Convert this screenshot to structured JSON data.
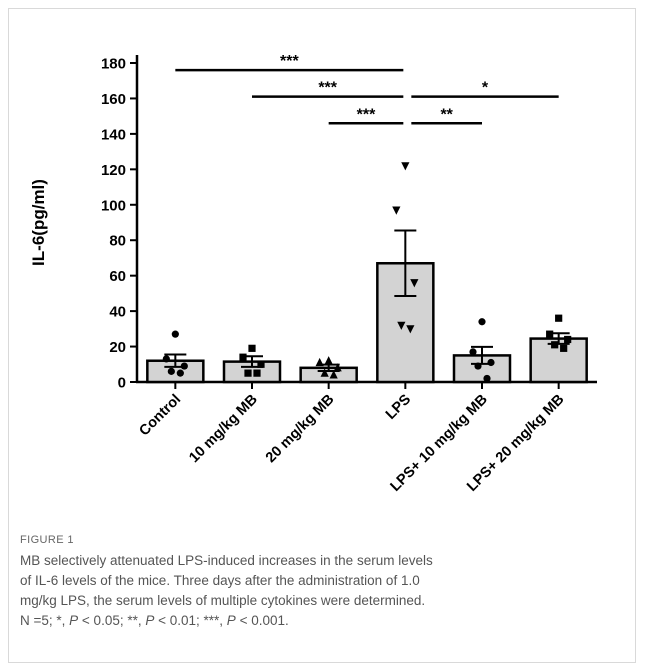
{
  "chart_data": {
    "type": "bar",
    "ylabel": "IL-6(pg/ml)",
    "ylim": [
      0,
      180
    ],
    "yticks": [
      0,
      20,
      40,
      60,
      80,
      100,
      120,
      140,
      160,
      180
    ],
    "categories": [
      "Control",
      "10 mg/kg MB",
      "20 mg/kg MB",
      "LPS",
      "LPS+ 10 mg/kg MB",
      "LPS+ 20 mg/kg MB"
    ],
    "values": [
      12.0,
      11.5,
      8.0,
      67.0,
      15.0,
      24.5
    ],
    "sem": [
      3.5,
      3.0,
      1.8,
      18.5,
      4.8,
      3.0
    ],
    "points": [
      [
        27,
        13,
        9,
        6,
        5
      ],
      [
        19,
        14,
        10,
        5,
        5
      ],
      [
        12,
        11,
        8,
        5,
        4
      ],
      [
        122,
        97,
        56,
        32,
        30
      ],
      [
        34,
        17,
        11,
        9,
        2
      ],
      [
        36,
        27,
        24,
        21,
        19
      ]
    ],
    "markers": [
      "circle",
      "square",
      "triangle",
      "triangle-down",
      "circle",
      "square"
    ],
    "significance": [
      {
        "from": 0,
        "to": 3,
        "y": 176,
        "label": "***"
      },
      {
        "from": 1,
        "to": 3,
        "y": 161,
        "label": "***"
      },
      {
        "from": 2,
        "to": 3,
        "y": 146,
        "label": "***"
      },
      {
        "from": 3,
        "to": 4,
        "y": 146,
        "label": "**"
      },
      {
        "from": 3,
        "to": 5,
        "y": 161,
        "label": "*"
      }
    ],
    "colors": {
      "bar": "#d3d3d3",
      "stroke": "#000000"
    }
  },
  "caption": {
    "figure_label": "FIGURE 1",
    "line1": "MB selectively attenuated LPS-induced increases in the serum levels",
    "line2": "of IL-6 levels of the mice. Three days after the administration of 1.0",
    "line3": "mg/kg LPS, the serum levels of multiple cytokines were determined.",
    "line4_a": "N =5; *, ",
    "p": "P",
    "line4_b": " < 0.05; **, ",
    "line4_c": " < 0.01; ***, ",
    "line4_d": " < 0.001."
  }
}
